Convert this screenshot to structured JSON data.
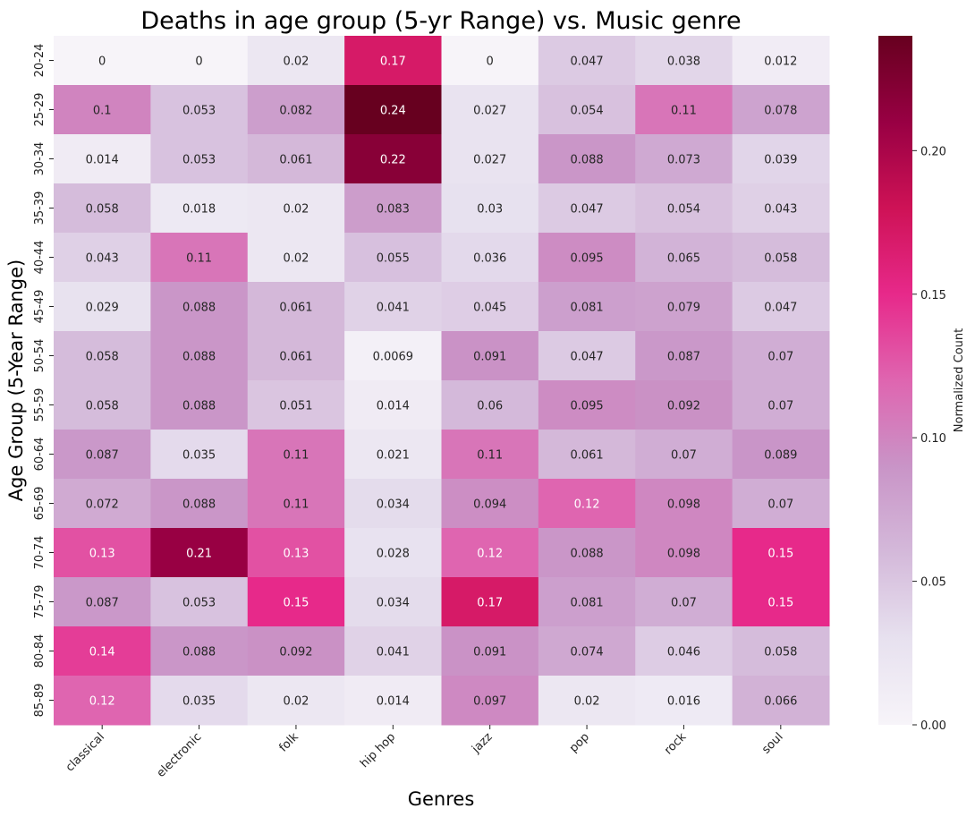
{
  "chart_data": {
    "type": "heatmap",
    "title": "Deaths in age group (5-yr Range) vs. Music genre",
    "xlabel": "Genres",
    "ylabel": "Age Group (5-Year Range)",
    "colorbar_label": "Normalized Count",
    "colorbar_range": [
      0,
      0.24
    ],
    "colorbar_ticks": [
      "0.00",
      "0.05",
      "0.10",
      "0.15",
      "0.20"
    ],
    "colormap": [
      "#f7f4f9",
      "#e7e1ef",
      "#d4b9da",
      "#c994c7",
      "#df65b0",
      "#e7298a",
      "#ce1256",
      "#980043",
      "#67001f"
    ],
    "x_categories": [
      "classical",
      "electronic",
      "folk",
      "hip hop",
      "jazz",
      "pop",
      "rock",
      "soul"
    ],
    "y_categories": [
      "20-24",
      "25-29",
      "30-34",
      "35-39",
      "40-44",
      "45-49",
      "50-54",
      "55-59",
      "60-64",
      "65-69",
      "70-74",
      "75-79",
      "80-84",
      "85-89"
    ],
    "values": [
      [
        0,
        0,
        0.02,
        0.17,
        0,
        0.047,
        0.038,
        0.012
      ],
      [
        0.1,
        0.053,
        0.082,
        0.24,
        0.027,
        0.054,
        0.11,
        0.078
      ],
      [
        0.014,
        0.053,
        0.061,
        0.22,
        0.027,
        0.088,
        0.073,
        0.039
      ],
      [
        0.058,
        0.018,
        0.02,
        0.083,
        0.03,
        0.047,
        0.054,
        0.043
      ],
      [
        0.043,
        0.11,
        0.02,
        0.055,
        0.036,
        0.095,
        0.065,
        0.058
      ],
      [
        0.029,
        0.088,
        0.061,
        0.041,
        0.045,
        0.081,
        0.079,
        0.047
      ],
      [
        0.058,
        0.088,
        0.061,
        0.0069,
        0.091,
        0.047,
        0.087,
        0.07
      ],
      [
        0.058,
        0.088,
        0.051,
        0.014,
        0.06,
        0.095,
        0.092,
        0.07
      ],
      [
        0.087,
        0.035,
        0.11,
        0.021,
        0.11,
        0.061,
        0.07,
        0.089
      ],
      [
        0.072,
        0.088,
        0.11,
        0.034,
        0.094,
        0.12,
        0.098,
        0.07
      ],
      [
        0.13,
        0.21,
        0.13,
        0.028,
        0.12,
        0.088,
        0.098,
        0.15
      ],
      [
        0.087,
        0.053,
        0.15,
        0.034,
        0.17,
        0.081,
        0.07,
        0.15
      ],
      [
        0.14,
        0.088,
        0.092,
        0.041,
        0.091,
        0.074,
        0.046,
        0.058
      ],
      [
        0.12,
        0.035,
        0.02,
        0.014,
        0.097,
        0.02,
        0.016,
        0.066
      ]
    ],
    "value_labels": [
      [
        "0",
        "0",
        "0.02",
        "0.17",
        "0",
        "0.047",
        "0.038",
        "0.012"
      ],
      [
        "0.1",
        "0.053",
        "0.082",
        "0.24",
        "0.027",
        "0.054",
        "0.11",
        "0.078"
      ],
      [
        "0.014",
        "0.053",
        "0.061",
        "0.22",
        "0.027",
        "0.088",
        "0.073",
        "0.039"
      ],
      [
        "0.058",
        "0.018",
        "0.02",
        "0.083",
        "0.03",
        "0.047",
        "0.054",
        "0.043"
      ],
      [
        "0.043",
        "0.11",
        "0.02",
        "0.055",
        "0.036",
        "0.095",
        "0.065",
        "0.058"
      ],
      [
        "0.029",
        "0.088",
        "0.061",
        "0.041",
        "0.045",
        "0.081",
        "0.079",
        "0.047"
      ],
      [
        "0.058",
        "0.088",
        "0.061",
        "0.0069",
        "0.091",
        "0.047",
        "0.087",
        "0.07"
      ],
      [
        "0.058",
        "0.088",
        "0.051",
        "0.014",
        "0.06",
        "0.095",
        "0.092",
        "0.07"
      ],
      [
        "0.087",
        "0.035",
        "0.11",
        "0.021",
        "0.11",
        "0.061",
        "0.07",
        "0.089"
      ],
      [
        "0.072",
        "0.088",
        "0.11",
        "0.034",
        "0.094",
        "0.12",
        "0.098",
        "0.07"
      ],
      [
        "0.13",
        "0.21",
        "0.13",
        "0.028",
        "0.12",
        "0.088",
        "0.098",
        "0.15"
      ],
      [
        "0.087",
        "0.053",
        "0.15",
        "0.034",
        "0.17",
        "0.081",
        "0.07",
        "0.15"
      ],
      [
        "0.14",
        "0.088",
        "0.092",
        "0.041",
        "0.091",
        "0.074",
        "0.046",
        "0.058"
      ],
      [
        "0.12",
        "0.035",
        "0.02",
        "0.014",
        "0.097",
        "0.02",
        "0.016",
        "0.066"
      ]
    ]
  }
}
